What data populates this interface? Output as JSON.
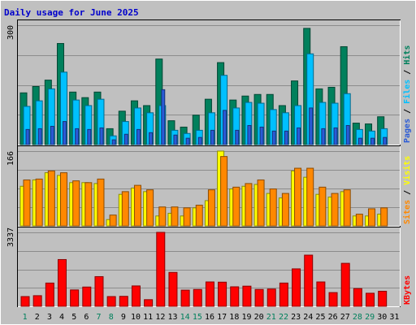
{
  "colors": {
    "background": "#c0c0c0",
    "title": "#0000cc",
    "hits": "#00805c",
    "files": "#00c0ff",
    "pages": "#2a5bd7",
    "sites": "#ff8800",
    "visits": "#ffff00",
    "kbytes": "#ff0000",
    "weekend_label": "#00805c",
    "weekday_label": "#000000",
    "grid": "#8c8c8c"
  },
  "chart_data": {
    "type": "bar",
    "title": "Daily usage for June 2025",
    "categories": [
      "1",
      "2",
      "3",
      "4",
      "5",
      "6",
      "7",
      "8",
      "9",
      "10",
      "11",
      "12",
      "13",
      "14",
      "15",
      "16",
      "17",
      "18",
      "19",
      "20",
      "21",
      "22",
      "23",
      "24",
      "25",
      "26",
      "27",
      "28",
      "29",
      "30",
      "31"
    ],
    "weekend_days": [
      "1",
      "7",
      "8",
      "14",
      "15",
      "21",
      "22",
      "28",
      "29"
    ],
    "panels": [
      {
        "id": "hits",
        "ylim_label": "300",
        "ymax": 300,
        "grid": true,
        "side_label": [
          "Pages",
          "Files",
          "Hits"
        ],
        "series": [
          {
            "name": "Hits",
            "color_key": "hits",
            "values": [
              130,
              146,
              162,
              254,
              132,
              118,
              132,
              40,
              84,
              110,
              98,
              215,
              60,
              44,
              74,
              114,
              206,
              112,
              122,
              126,
              126,
              98,
              160,
              292,
              140,
              144,
              246,
              54,
              52,
              70,
              0
            ]
          },
          {
            "name": "Files",
            "color_key": "files",
            "values": [
              96,
              110,
              140,
              182,
              112,
              98,
              114,
              22,
              58,
              92,
              80,
              98,
              36,
              28,
              36,
              80,
              174,
              92,
              106,
              104,
              88,
              80,
              98,
              228,
              106,
              104,
              128,
              38,
              34,
              40,
              0
            ]
          },
          {
            "name": "Pages",
            "color_key": "pages",
            "values": [
              38,
              40,
              46,
              58,
              40,
              38,
              42,
              12,
              26,
              38,
              30,
              138,
              24,
              16,
              18,
              36,
              86,
              36,
              48,
              44,
              34,
              34,
              42,
              92,
              40,
              42,
              48,
              16,
              16,
              18,
              0
            ]
          }
        ]
      },
      {
        "id": "visits",
        "ylim_label": "166",
        "ymax": 166,
        "grid": true,
        "side_label": [
          "Sites",
          "Visits"
        ],
        "series": [
          {
            "name": "Visits",
            "color_key": "visits",
            "values": [
              88,
              102,
              118,
              112,
              96,
              96,
              94,
              14,
              70,
              84,
              76,
              22,
              28,
              22,
              40,
              56,
              166,
              82,
              88,
              92,
              72,
              62,
              122,
              108,
              70,
              64,
              76,
              22,
              22,
              26,
              0
            ]
          },
          {
            "name": "Sites",
            "color_key": "sites",
            "values": [
              102,
              104,
              122,
              118,
              100,
              96,
              104,
              24,
              76,
              90,
              80,
              42,
              42,
              40,
              46,
              80,
              154,
              86,
              94,
              102,
              82,
              72,
              128,
              128,
              86,
              72,
              80,
              26,
              38,
              40,
              0
            ]
          }
        ]
      },
      {
        "id": "kbytes",
        "ylim_label": "3337",
        "ymax": 3337,
        "grid": true,
        "side_label": [
          "KBytes"
        ],
        "series": [
          {
            "name": "KBytes",
            "color_key": "kbytes",
            "values": [
              440,
              480,
              1050,
              2110,
              740,
              870,
              1340,
              440,
              450,
              920,
              300,
              3337,
              1530,
              730,
              760,
              1100,
              1090,
              880,
              910,
              760,
              780,
              1050,
              1690,
              2310,
              1100,
              620,
              1940,
              800,
              590,
              680,
              0
            ]
          }
        ]
      }
    ]
  }
}
